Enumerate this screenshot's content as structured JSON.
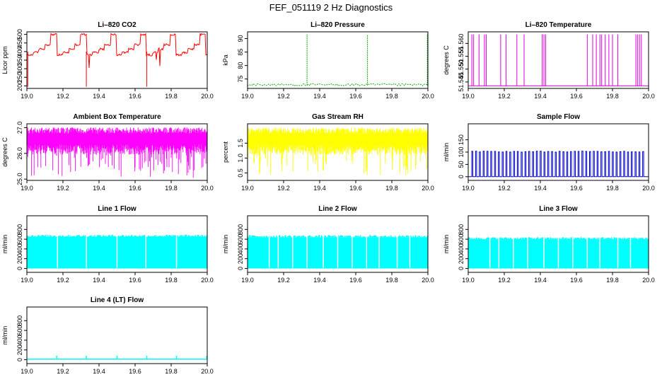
{
  "figure": {
    "title": "FEF_051119  2 Hz Diagnostics"
  },
  "chart_data": [
    {
      "id": "li820-co2",
      "type": "line",
      "color": "#ff0000",
      "pattern": "co2",
      "title": "Li–820 CO2",
      "ylabel": "Licor ppm",
      "xlabel": "",
      "xlim": [
        19.0,
        20.0
      ],
      "ylim": [
        185,
        515
      ],
      "x": [
        19.0,
        19.2,
        19.4,
        19.6,
        19.8,
        20.0
      ],
      "xtick_labels": [
        "19.0",
        "19.2",
        "19.4",
        "19.6",
        "19.8",
        "20.0"
      ],
      "yticks": [
        200,
        250,
        300,
        350,
        400,
        450,
        500
      ],
      "ytick_labels": [
        "200",
        "250",
        "300",
        "350",
        "400",
        "450",
        "500"
      ],
      "range": [
        195,
        505
      ]
    },
    {
      "id": "li820-pressure",
      "type": "line",
      "color": "#00b000",
      "pattern": "pressure",
      "title": "Li–820 Pressure",
      "ylabel": "kPa",
      "xlabel": "",
      "xlim": [
        19.0,
        20.0
      ],
      "ylim": [
        71.5,
        92.5
      ],
      "x": [
        19.0,
        19.2,
        19.4,
        19.6,
        19.8,
        20.0
      ],
      "xtick_labels": [
        "19.0",
        "19.2",
        "19.4",
        "19.6",
        "19.8",
        "20.0"
      ],
      "yticks": [
        75,
        80,
        85,
        90
      ],
      "ytick_labels": [
        "75",
        "80",
        "85",
        "90"
      ],
      "range": [
        72.3,
        91.7
      ]
    },
    {
      "id": "li820-temperature",
      "type": "line",
      "color": "#e000e0",
      "pattern": "ltemp",
      "title": "Li–820 Temperature",
      "ylabel": "degrees C",
      "xlabel": "",
      "xlim": [
        19.0,
        20.0
      ],
      "ylim": [
        51.5425,
        51.5645
      ],
      "x": [
        19.0,
        19.2,
        19.4,
        19.6,
        19.8,
        20.0
      ],
      "xtick_labels": [
        "19.0",
        "19.2",
        "19.4",
        "19.6",
        "19.8",
        "20.0"
      ],
      "yticks": [
        51.545,
        51.55,
        51.555,
        51.56
      ],
      "ytick_labels": [
        "51.545",
        "51.550",
        "51.555",
        "51.560"
      ],
      "range": [
        51.5435,
        51.5635
      ]
    },
    {
      "id": "ambient-box-temperature",
      "type": "line",
      "color": "#ff00ff",
      "pattern": "noise",
      "title": "Ambient Box Temperature",
      "ylabel": "degrees C",
      "xlabel": "",
      "xlim": [
        19.0,
        20.0
      ],
      "ylim": [
        24.95,
        27.15
      ],
      "x": [
        19.0,
        19.2,
        19.4,
        19.6,
        19.8,
        20.0
      ],
      "xtick_labels": [
        "19.0",
        "19.2",
        "19.4",
        "19.6",
        "19.8",
        "20.0"
      ],
      "yticks": [
        25.0,
        26.0,
        27.0
      ],
      "ytick_labels": [
        "25.0",
        "26.0",
        "27.0"
      ],
      "range": [
        25.05,
        27.05
      ]
    },
    {
      "id": "gas-stream-rh",
      "type": "line",
      "color": "#ffff00",
      "pattern": "noise",
      "title": "Gas Stream RH",
      "ylabel": "percent",
      "xlabel": "",
      "xlim": [
        19.0,
        20.0
      ],
      "ylim": [
        0.25,
        2.15
      ],
      "x": [
        19.0,
        19.2,
        19.4,
        19.6,
        19.8,
        20.0
      ],
      "xtick_labels": [
        "19.0",
        "19.2",
        "19.4",
        "19.6",
        "19.8",
        "20.0"
      ],
      "yticks": [
        0.5,
        1.0,
        1.5
      ],
      "ytick_labels": [
        "0.5",
        "1.0",
        "1.5"
      ],
      "range": [
        0.35,
        2.05
      ]
    },
    {
      "id": "sample-flow",
      "type": "line",
      "color": "#0000cc",
      "pattern": "sample",
      "title": "Sample Flow",
      "ylabel": "ml/min",
      "xlabel": "",
      "xlim": [
        19.0,
        20.0
      ],
      "ylim": [
        -15,
        215
      ],
      "x": [
        19.0,
        19.2,
        19.4,
        19.6,
        19.8,
        20.0
      ],
      "xtick_labels": [
        "19.0",
        "19.2",
        "19.4",
        "19.6",
        "19.8",
        "20.0"
      ],
      "yticks": [
        0,
        50,
        100,
        150
      ],
      "ytick_labels": [
        "0",
        "50",
        "100",
        "150"
      ],
      "range": [
        0,
        105
      ]
    },
    {
      "id": "line-1-flow",
      "type": "line",
      "color": "#00ffff",
      "pattern": "flow",
      "title": "Line 1 Flow",
      "ylabel": "ml/min",
      "xlabel": "",
      "xlim": [
        19.0,
        20.0
      ],
      "ylim": [
        -80,
        1080
      ],
      "x": [
        19.0,
        19.2,
        19.4,
        19.6,
        19.8,
        20.0
      ],
      "xtick_labels": [
        "19.0",
        "19.2",
        "19.4",
        "19.6",
        "19.8",
        "20.0"
      ],
      "yticks": [
        0,
        200,
        400,
        600,
        800
      ],
      "ytick_labels": [
        "0",
        "200",
        "400",
        "600",
        "800"
      ],
      "range": [
        0,
        650
      ]
    },
    {
      "id": "line-2-flow",
      "type": "line",
      "color": "#00ffff",
      "pattern": "flow",
      "title": "Line 2 Flow",
      "ylabel": "ml/min",
      "xlabel": "",
      "xlim": [
        19.0,
        20.0
      ],
      "ylim": [
        -80,
        1080
      ],
      "x": [
        19.0,
        19.2,
        19.4,
        19.6,
        19.8,
        20.0
      ],
      "xtick_labels": [
        "19.0",
        "19.2",
        "19.4",
        "19.6",
        "19.8",
        "20.0"
      ],
      "yticks": [
        0,
        200,
        400,
        600,
        800
      ],
      "ytick_labels": [
        "0",
        "200",
        "400",
        "600",
        "800"
      ],
      "range": [
        0,
        640
      ]
    },
    {
      "id": "line-3-flow",
      "type": "line",
      "color": "#00ffff",
      "pattern": "flow",
      "title": "Line 3 Flow",
      "ylabel": "ml/min",
      "xlabel": "",
      "xlim": [
        19.0,
        20.0
      ],
      "ylim": [
        -80,
        1080
      ],
      "x": [
        19.0,
        19.2,
        19.4,
        19.6,
        19.8,
        20.0
      ],
      "xtick_labels": [
        "19.0",
        "19.2",
        "19.4",
        "19.6",
        "19.8",
        "20.0"
      ],
      "yticks": [
        0,
        200,
        400,
        600,
        800
      ],
      "ytick_labels": [
        "0",
        "200",
        "400",
        "600",
        "800"
      ],
      "range": [
        0,
        600
      ]
    },
    {
      "id": "line-4-lt-flow",
      "type": "line",
      "color": "#00ffff",
      "pattern": "flat",
      "title": "Line 4 (LT) Flow",
      "ylabel": "ml/min",
      "xlabel": "",
      "xlim": [
        19.0,
        20.0
      ],
      "ylim": [
        -80,
        1080
      ],
      "x": [
        19.0,
        19.2,
        19.4,
        19.6,
        19.8,
        20.0
      ],
      "xtick_labels": [
        "19.0",
        "19.2",
        "19.4",
        "19.6",
        "19.8",
        "20.0"
      ],
      "yticks": [
        0,
        200,
        400,
        600,
        800
      ],
      "ytick_labels": [
        "0",
        "200",
        "400",
        "600",
        "800"
      ],
      "range": [
        0,
        80
      ]
    }
  ]
}
